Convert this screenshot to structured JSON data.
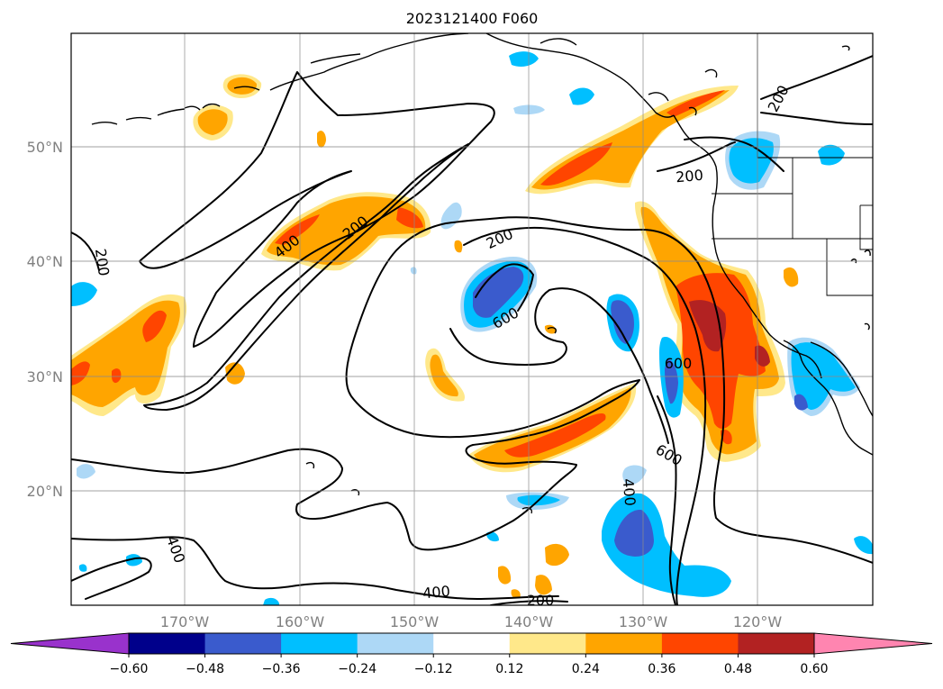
{
  "title": "2023121400 F060",
  "lat_labels": [
    "50°N",
    "40°N",
    "30°N",
    "20°N"
  ],
  "lon_labels": [
    "170°W",
    "160°W",
    "150°W",
    "140°W",
    "130°W",
    "120°W"
  ],
  "contour_labels": [
    "200",
    "200",
    "200",
    "200",
    "200",
    "200",
    "400",
    "400",
    "400",
    "400",
    "600",
    "600",
    "600"
  ],
  "colorbar": {
    "ticks": [
      "−0.60",
      "−0.48",
      "−0.36",
      "−0.24",
      "−0.12",
      "0.12",
      "0.24",
      "0.36",
      "0.48",
      "0.60"
    ],
    "colors": [
      "#9932cc",
      "#00008b",
      "#3a5bcd",
      "#00bfff",
      "#add8f6",
      "#ffffff",
      "#ffe88a",
      "#ffa500",
      "#ff4500",
      "#b22222",
      "#ff85b0"
    ]
  },
  "palette": {
    "light_yellow": "#ffe88a",
    "orange": "#ffa500",
    "red_orange": "#ff4500",
    "dark_red": "#b22222",
    "light_blue": "#add8f6",
    "sky_blue": "#00bfff",
    "royal_blue": "#3a5bcd"
  }
}
